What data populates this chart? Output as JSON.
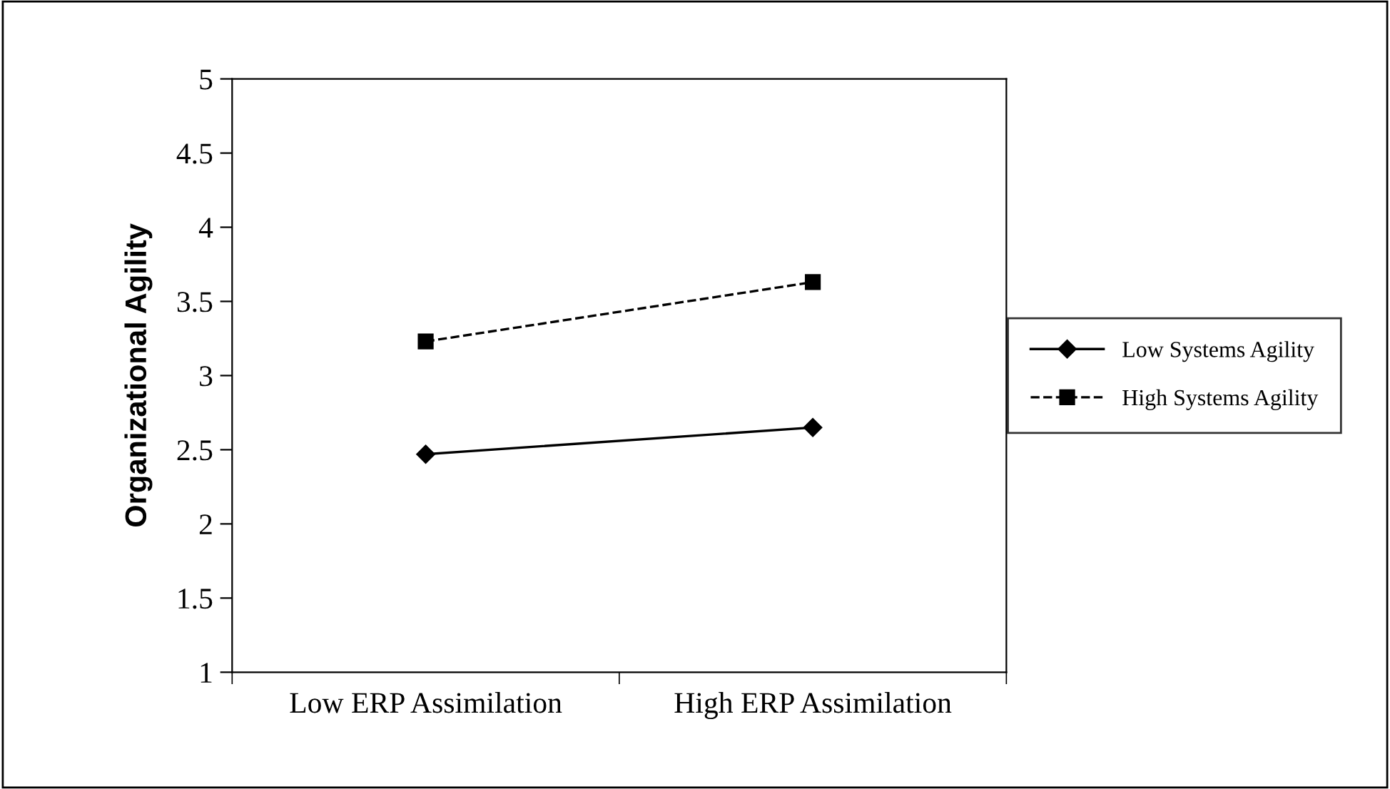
{
  "chart_data": {
    "type": "line",
    "ylabel": "Organizational Agility",
    "categories": [
      "Low ERP Assimilation",
      "High ERP Assimilation"
    ],
    "series": [
      {
        "name": "Low Systems Agility",
        "color": "#000000",
        "values": [
          2.47,
          2.65
        ],
        "marker": "diamond",
        "line_style": "solid"
      },
      {
        "name": "High Systems Agility",
        "color": "#000000",
        "values": [
          3.23,
          3.63
        ],
        "marker": "square",
        "line_style": "dashed"
      }
    ],
    "ylim": [
      1,
      5
    ],
    "yticks": [
      1,
      1.5,
      2,
      2.5,
      3,
      3.5,
      4,
      4.5,
      5
    ],
    "grid": false,
    "legend": "right"
  }
}
